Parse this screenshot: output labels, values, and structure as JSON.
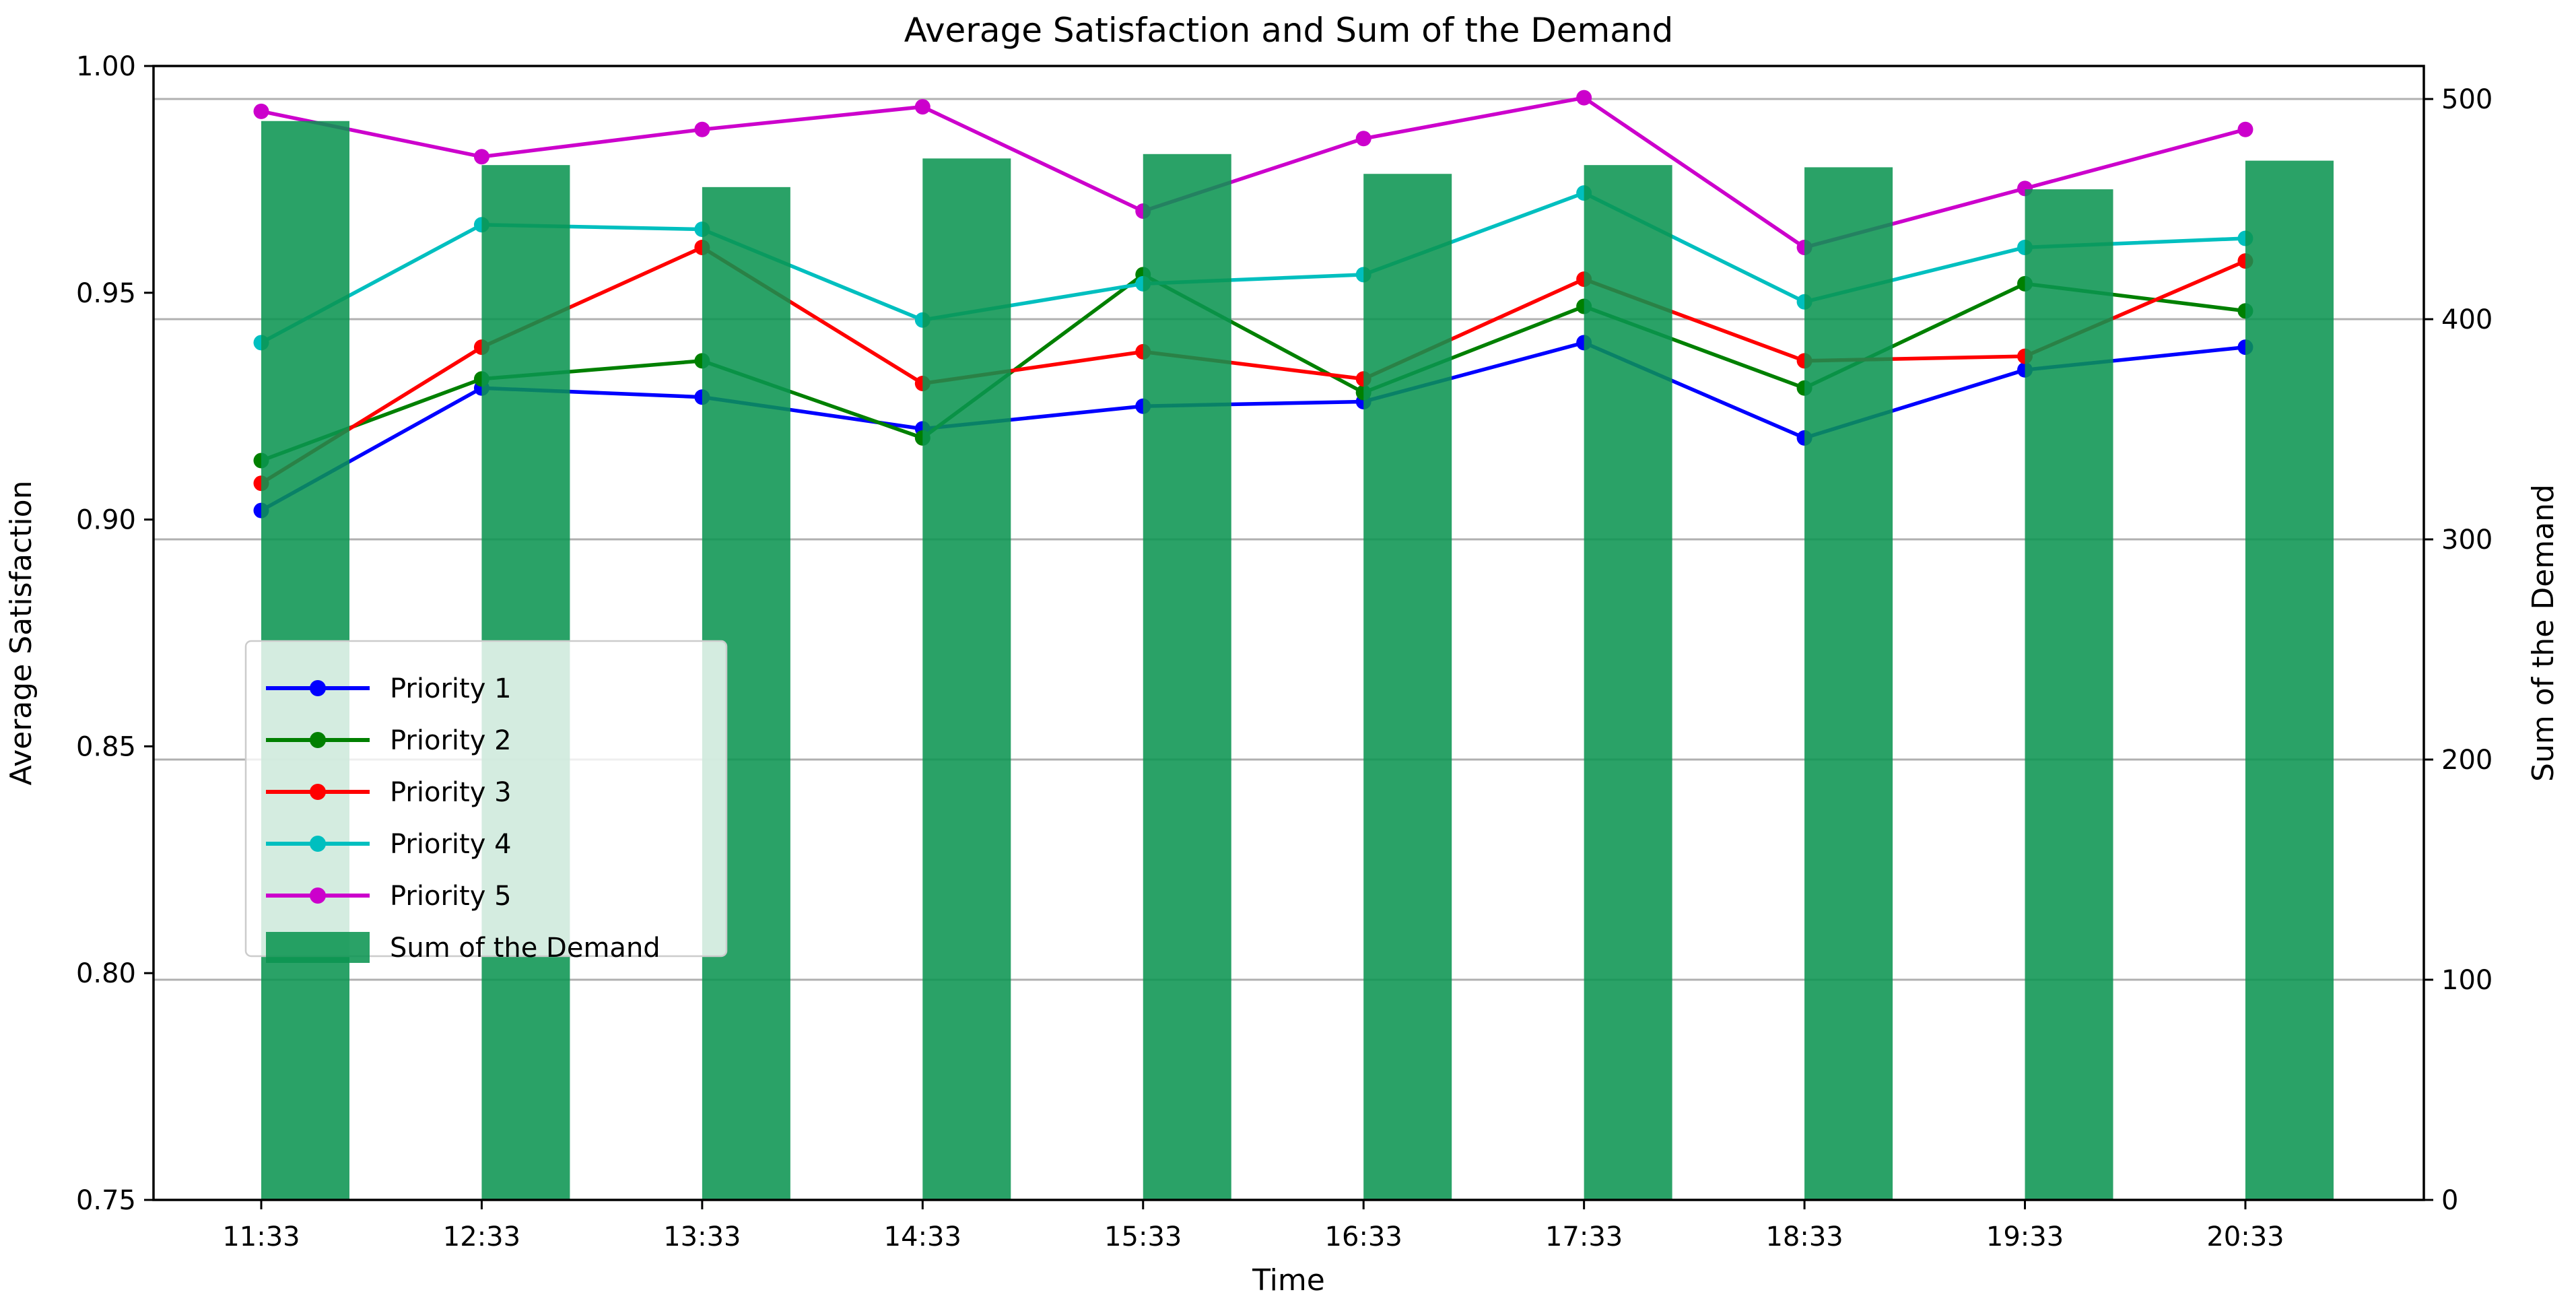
{
  "title": "Average Satisfaction and Sum of the Demand",
  "axes": {
    "x": {
      "label": "Time",
      "tick_labels": [
        "11:33",
        "12:33",
        "13:33",
        "14:33",
        "15:33",
        "16:33",
        "17:33",
        "18:33",
        "19:33",
        "20:33"
      ]
    },
    "y_left": {
      "label": "Average Satisfaction",
      "tick_labels": [
        "0.75",
        "0.80",
        "0.85",
        "0.90",
        "0.95",
        "1.00"
      ],
      "range": [
        0.75,
        1.0
      ],
      "color": "#000000"
    },
    "y_right": {
      "label": "Sum of the Demand",
      "tick_labels": [
        "0",
        "100",
        "200",
        "300",
        "400",
        "500"
      ],
      "range": [
        0,
        515
      ],
      "color": "#0f9d4b"
    }
  },
  "legend": {
    "items": [
      {
        "label": "Priority 1",
        "color": "#0000ff",
        "type": "line"
      },
      {
        "label": "Priority 2",
        "color": "#008000",
        "type": "line"
      },
      {
        "label": "Priority 3",
        "color": "#ff0000",
        "type": "line"
      },
      {
        "label": "Priority 4",
        "color": "#00bfbf",
        "type": "line"
      },
      {
        "label": "Priority 5",
        "color": "#cc00cc",
        "type": "line"
      },
      {
        "label": "Sum of the Demand",
        "color": "#0a9450",
        "type": "bar"
      }
    ]
  },
  "chart_data": {
    "type": "line+bar",
    "title": "Average Satisfaction and Sum of the Demand",
    "xlabel": "Time",
    "ylabel_left": "Average Satisfaction",
    "ylabel_right": "Sum of the Demand",
    "categories": [
      "11:33",
      "12:33",
      "13:33",
      "14:33",
      "15:33",
      "16:33",
      "17:33",
      "18:33",
      "19:33",
      "20:33"
    ],
    "y_left_range": [
      0.75,
      1.0
    ],
    "y_right_range": [
      0,
      515
    ],
    "gridlines_right": [
      100,
      200,
      300,
      400,
      500
    ],
    "grid_color": "#b0b0b0",
    "legend_position": "center left",
    "series": [
      {
        "name": "Priority 1",
        "color": "#0000ff",
        "axis": "left",
        "values": [
          0.902,
          0.929,
          0.927,
          0.92,
          0.925,
          0.926,
          0.939,
          0.918,
          0.933,
          0.938
        ]
      },
      {
        "name": "Priority 2",
        "color": "#008000",
        "axis": "left",
        "values": [
          0.913,
          0.931,
          0.935,
          0.918,
          0.954,
          0.928,
          0.947,
          0.929,
          0.952,
          0.946
        ]
      },
      {
        "name": "Priority 3",
        "color": "#ff0000",
        "axis": "left",
        "values": [
          0.908,
          0.938,
          0.96,
          0.93,
          0.937,
          0.931,
          0.953,
          0.935,
          0.936,
          0.957
        ]
      },
      {
        "name": "Priority 4",
        "color": "#00bfbf",
        "axis": "left",
        "values": [
          0.939,
          0.965,
          0.964,
          0.944,
          0.952,
          0.954,
          0.972,
          0.948,
          0.96,
          0.962
        ]
      },
      {
        "name": "Priority 5",
        "color": "#cc00cc",
        "axis": "left",
        "values": [
          0.99,
          0.98,
          0.986,
          0.991,
          0.968,
          0.984,
          0.993,
          0.96,
          0.973,
          0.986
        ]
      }
    ],
    "bars": {
      "name": "Sum of the Demand",
      "color": "#0a9450",
      "opacity": 0.87,
      "axis": "right",
      "values": [
        490,
        470,
        460,
        473,
        475,
        466,
        470,
        469,
        459,
        472
      ]
    }
  }
}
